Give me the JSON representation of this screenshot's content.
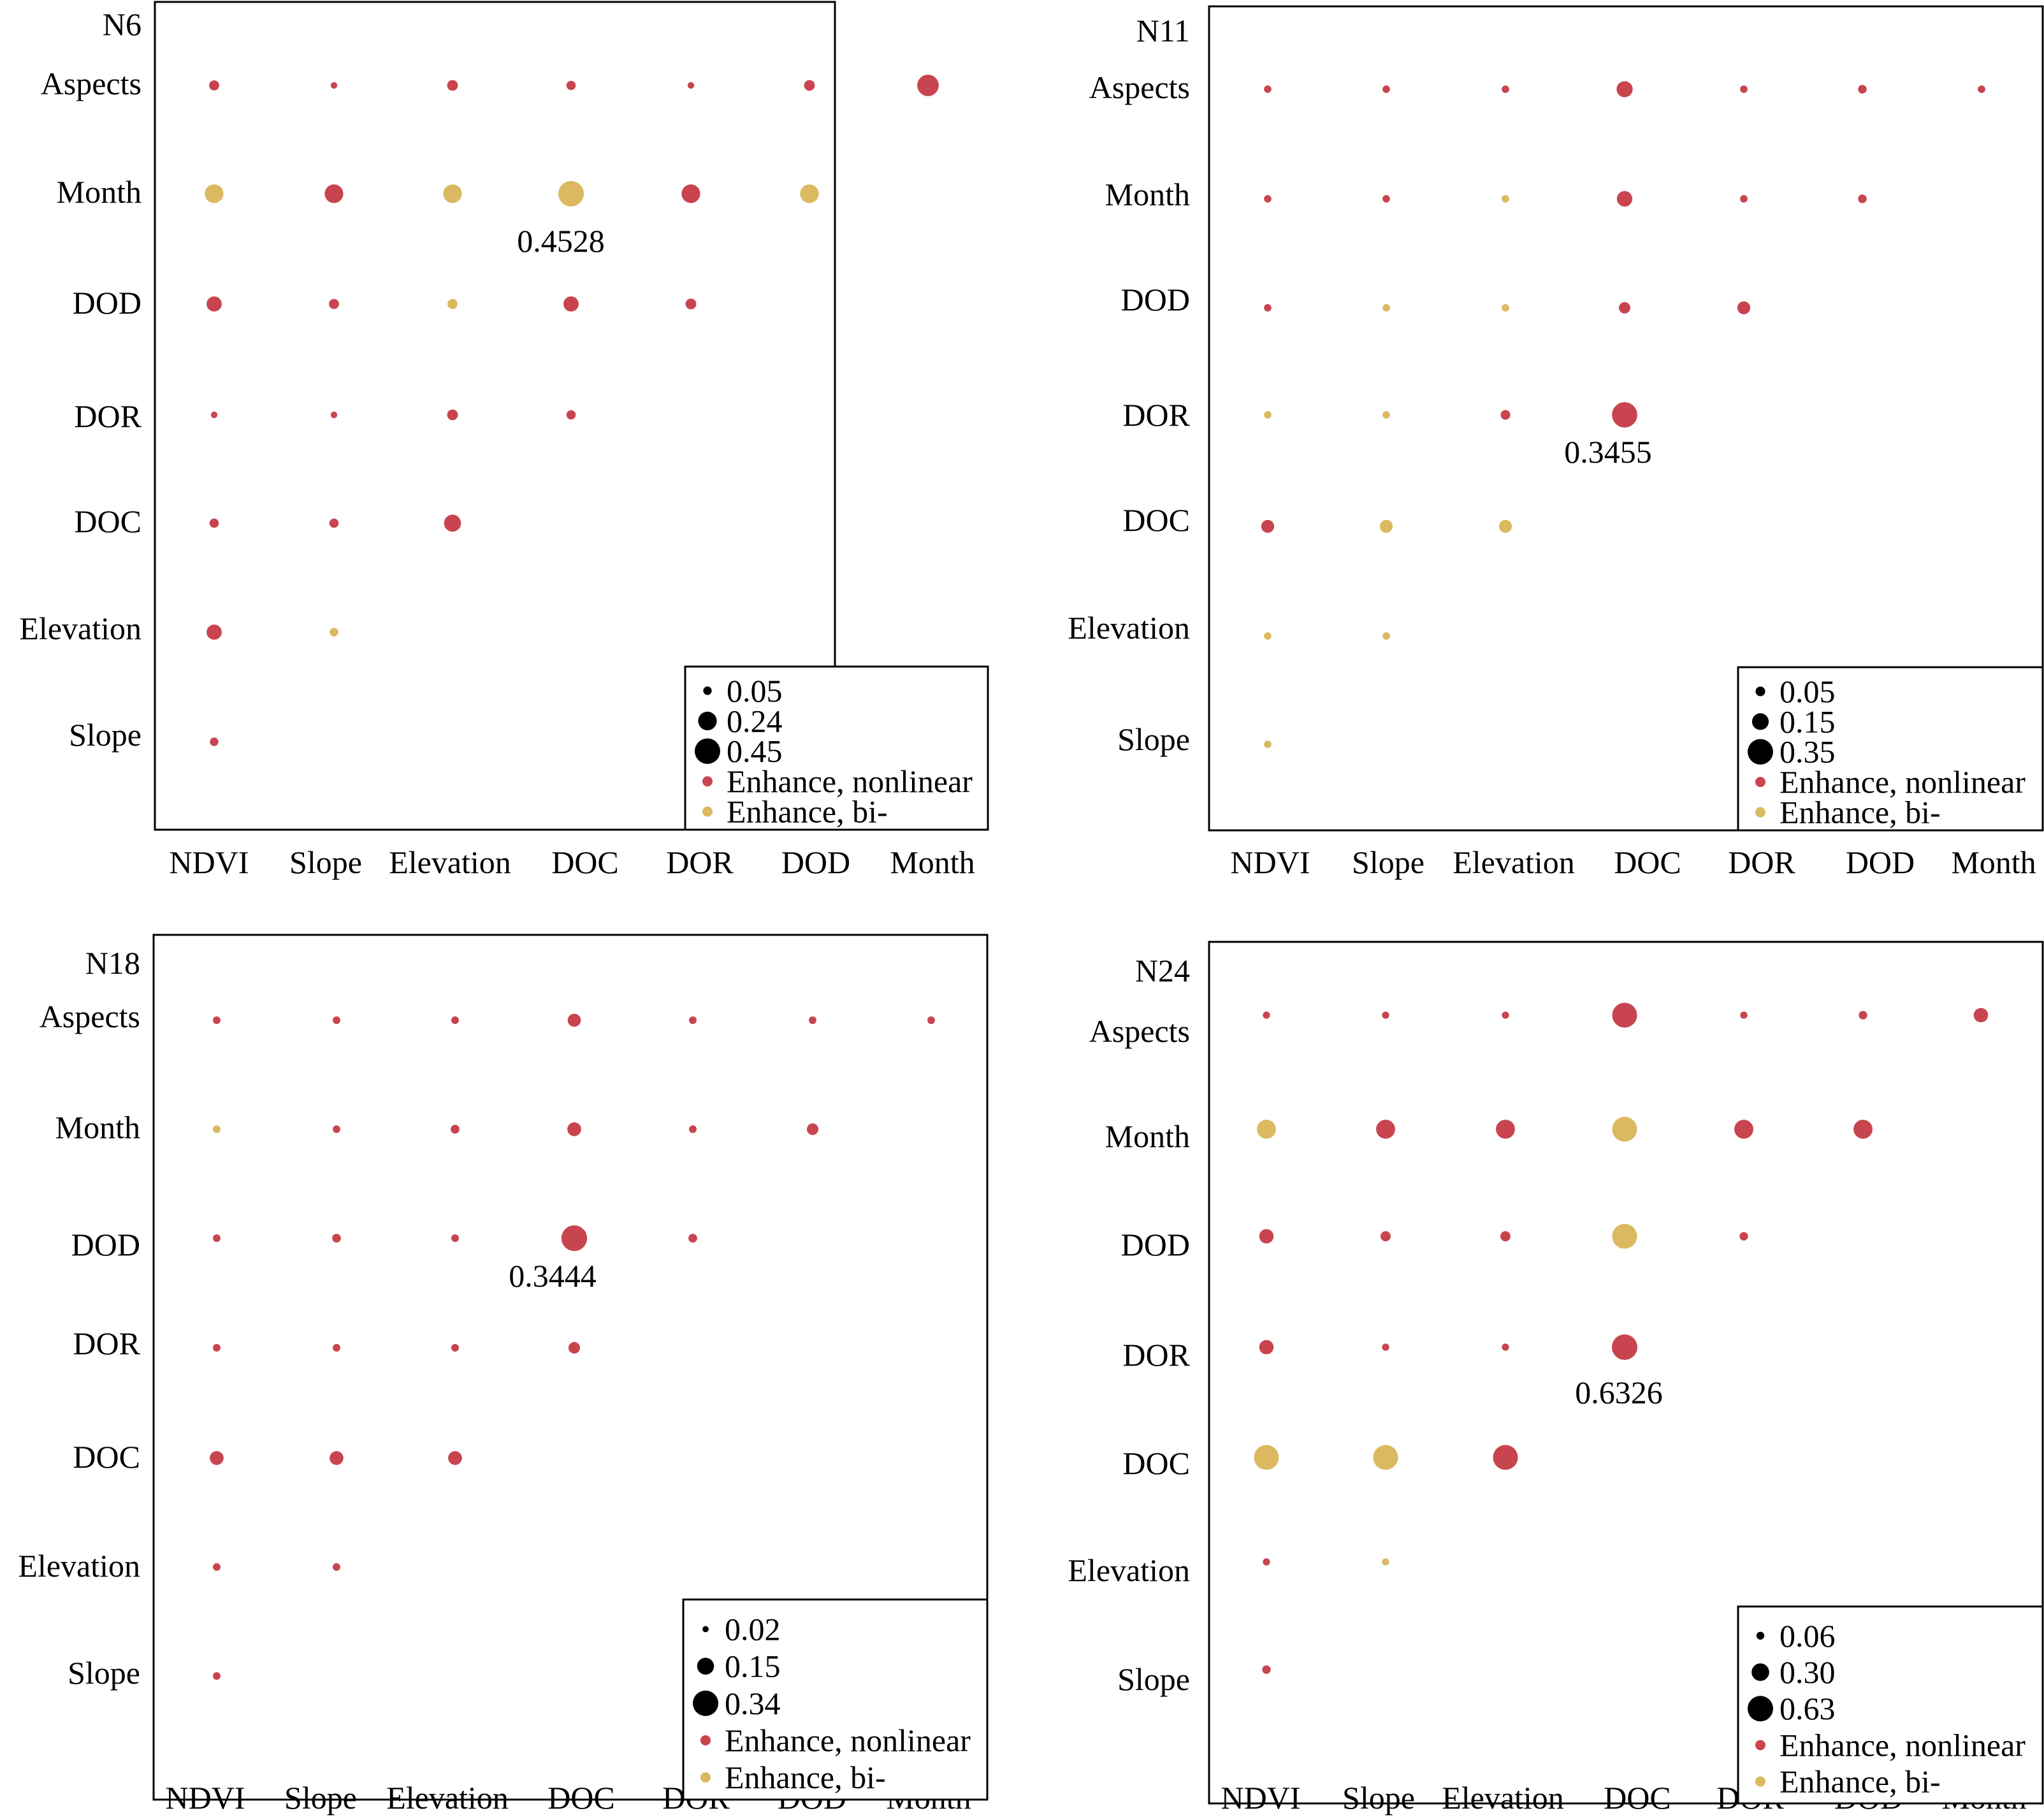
{
  "chart_data": [
    {
      "type": "scatter",
      "title": "N6",
      "x_categories": [
        "NDVI",
        "Slope",
        "Elevation",
        "DOC",
        "DOR",
        "DOD",
        "Month"
      ],
      "y_categories": [
        "Aspects",
        "Month",
        "DOD",
        "DOR",
        "DOC",
        "Elevation",
        "Slope"
      ],
      "max_label": "0.4528",
      "legend": {
        "sizes": [
          {
            "label": "0.05",
            "value": 0.05
          },
          {
            "label": "0.24",
            "value": 0.24
          },
          {
            "label": "0.45",
            "value": 0.45
          }
        ],
        "types": [
          "Enhance, nonlinear",
          "Enhance, bi-"
        ],
        "position": "bottom-right"
      },
      "points": [
        {
          "x": "NDVI",
          "y": "Aspects",
          "value": 0.07,
          "type": "nonlinear"
        },
        {
          "x": "Slope",
          "y": "Aspects",
          "value": 0.03,
          "type": "nonlinear"
        },
        {
          "x": "Elevation",
          "y": "Aspects",
          "value": 0.08,
          "type": "nonlinear"
        },
        {
          "x": "DOC",
          "y": "Aspects",
          "value": 0.06,
          "type": "nonlinear"
        },
        {
          "x": "DOR",
          "y": "Aspects",
          "value": 0.03,
          "type": "nonlinear"
        },
        {
          "x": "DOD",
          "y": "Aspects",
          "value": 0.08,
          "type": "nonlinear"
        },
        {
          "x": "Month",
          "y": "Aspects",
          "value": 0.32,
          "type": "nonlinear"
        },
        {
          "x": "NDVI",
          "y": "Month",
          "value": 0.24,
          "type": "bi"
        },
        {
          "x": "Slope",
          "y": "Month",
          "value": 0.24,
          "type": "nonlinear"
        },
        {
          "x": "Elevation",
          "y": "Month",
          "value": 0.24,
          "type": "bi"
        },
        {
          "x": "DOC",
          "y": "Month",
          "value": 0.4528,
          "type": "bi"
        },
        {
          "x": "DOR",
          "y": "Month",
          "value": 0.24,
          "type": "nonlinear"
        },
        {
          "x": "DOD",
          "y": "Month",
          "value": 0.24,
          "type": "bi"
        },
        {
          "x": "NDVI",
          "y": "DOD",
          "value": 0.16,
          "type": "nonlinear"
        },
        {
          "x": "Slope",
          "y": "DOD",
          "value": 0.07,
          "type": "nonlinear"
        },
        {
          "x": "Elevation",
          "y": "DOD",
          "value": 0.07,
          "type": "bi"
        },
        {
          "x": "DOC",
          "y": "DOD",
          "value": 0.16,
          "type": "nonlinear"
        },
        {
          "x": "DOR",
          "y": "DOD",
          "value": 0.08,
          "type": "nonlinear"
        },
        {
          "x": "NDVI",
          "y": "DOR",
          "value": 0.03,
          "type": "nonlinear"
        },
        {
          "x": "Slope",
          "y": "DOR",
          "value": 0.03,
          "type": "nonlinear"
        },
        {
          "x": "Elevation",
          "y": "DOR",
          "value": 0.08,
          "type": "nonlinear"
        },
        {
          "x": "DOC",
          "y": "DOR",
          "value": 0.06,
          "type": "nonlinear"
        },
        {
          "x": "NDVI",
          "y": "DOC",
          "value": 0.06,
          "type": "nonlinear"
        },
        {
          "x": "Slope",
          "y": "DOC",
          "value": 0.06,
          "type": "nonlinear"
        },
        {
          "x": "Elevation",
          "y": "DOC",
          "value": 0.2,
          "type": "nonlinear"
        },
        {
          "x": "NDVI",
          "y": "Elevation",
          "value": 0.16,
          "type": "nonlinear"
        },
        {
          "x": "Slope",
          "y": "Elevation",
          "value": 0.05,
          "type": "bi"
        },
        {
          "x": "NDVI",
          "y": "Slope",
          "value": 0.05,
          "type": "nonlinear"
        }
      ]
    },
    {
      "type": "scatter",
      "title": "N11",
      "x_categories": [
        "NDVI",
        "Slope",
        "Elevation",
        "DOC",
        "DOR",
        "DOD",
        "Month"
      ],
      "y_categories": [
        "Aspects",
        "Month",
        "DOD",
        "DOR",
        "DOC",
        "Elevation",
        "Slope"
      ],
      "max_label": "0.3455",
      "legend": {
        "sizes": [
          {
            "label": "0.05",
            "value": 0.05
          },
          {
            "label": "0.15",
            "value": 0.15
          },
          {
            "label": "0.35",
            "value": 0.35
          }
        ],
        "types": [
          "Enhance, nonlinear",
          "Enhance, bi-"
        ],
        "position": "bottom-right"
      },
      "points": [
        {
          "x": "NDVI",
          "y": "Aspects",
          "value": 0.03,
          "type": "nonlinear"
        },
        {
          "x": "Slope",
          "y": "Aspects",
          "value": 0.03,
          "type": "nonlinear"
        },
        {
          "x": "Elevation",
          "y": "Aspects",
          "value": 0.03,
          "type": "nonlinear"
        },
        {
          "x": "DOC",
          "y": "Aspects",
          "value": 0.14,
          "type": "nonlinear"
        },
        {
          "x": "DOR",
          "y": "Aspects",
          "value": 0.03,
          "type": "nonlinear"
        },
        {
          "x": "DOD",
          "y": "Aspects",
          "value": 0.04,
          "type": "nonlinear"
        },
        {
          "x": "Month",
          "y": "Aspects",
          "value": 0.03,
          "type": "nonlinear"
        },
        {
          "x": "NDVI",
          "y": "Month",
          "value": 0.03,
          "type": "nonlinear"
        },
        {
          "x": "Slope",
          "y": "Month",
          "value": 0.03,
          "type": "nonlinear"
        },
        {
          "x": "Elevation",
          "y": "Month",
          "value": 0.03,
          "type": "bi"
        },
        {
          "x": "DOC",
          "y": "Month",
          "value": 0.13,
          "type": "nonlinear"
        },
        {
          "x": "DOR",
          "y": "Month",
          "value": 0.03,
          "type": "nonlinear"
        },
        {
          "x": "DOD",
          "y": "Month",
          "value": 0.04,
          "type": "nonlinear"
        },
        {
          "x": "NDVI",
          "y": "DOD",
          "value": 0.03,
          "type": "nonlinear"
        },
        {
          "x": "Slope",
          "y": "DOD",
          "value": 0.03,
          "type": "bi"
        },
        {
          "x": "Elevation",
          "y": "DOD",
          "value": 0.03,
          "type": "bi"
        },
        {
          "x": "DOC",
          "y": "DOD",
          "value": 0.07,
          "type": "nonlinear"
        },
        {
          "x": "DOR",
          "y": "DOD",
          "value": 0.09,
          "type": "nonlinear"
        },
        {
          "x": "NDVI",
          "y": "DOR",
          "value": 0.03,
          "type": "bi"
        },
        {
          "x": "Slope",
          "y": "DOR",
          "value": 0.03,
          "type": "bi"
        },
        {
          "x": "Elevation",
          "y": "DOR",
          "value": 0.05,
          "type": "nonlinear"
        },
        {
          "x": "DOC",
          "y": "DOR",
          "value": 0.3455,
          "type": "nonlinear"
        },
        {
          "x": "NDVI",
          "y": "DOC",
          "value": 0.09,
          "type": "nonlinear"
        },
        {
          "x": "Slope",
          "y": "DOC",
          "value": 0.09,
          "type": "bi"
        },
        {
          "x": "Elevation",
          "y": "DOC",
          "value": 0.09,
          "type": "bi"
        },
        {
          "x": "NDVI",
          "y": "Elevation",
          "value": 0.03,
          "type": "bi"
        },
        {
          "x": "Slope",
          "y": "Elevation",
          "value": 0.03,
          "type": "bi"
        },
        {
          "x": "NDVI",
          "y": "Slope",
          "value": 0.03,
          "type": "bi"
        }
      ]
    },
    {
      "type": "scatter",
      "title": "N18",
      "x_categories": [
        "NDVI",
        "Slope",
        "Elevation",
        "DOC",
        "DOR",
        "DOD",
        "Month"
      ],
      "y_categories": [
        "Aspects",
        "Month",
        "DOD",
        "DOR",
        "DOC",
        "Elevation",
        "Slope"
      ],
      "max_label": "0.3444",
      "legend": {
        "sizes": [
          {
            "label": "0.02",
            "value": 0.02
          },
          {
            "label": "0.15",
            "value": 0.15
          },
          {
            "label": "0.34",
            "value": 0.34
          }
        ],
        "types": [
          "Enhance, nonlinear",
          "Enhance, bi-"
        ],
        "position": "bottom-right"
      },
      "points": [
        {
          "x": "NDVI",
          "y": "Aspects",
          "value": 0.03,
          "type": "nonlinear"
        },
        {
          "x": "Slope",
          "y": "Aspects",
          "value": 0.03,
          "type": "nonlinear"
        },
        {
          "x": "Elevation",
          "y": "Aspects",
          "value": 0.03,
          "type": "nonlinear"
        },
        {
          "x": "DOC",
          "y": "Aspects",
          "value": 0.09,
          "type": "nonlinear"
        },
        {
          "x": "DOR",
          "y": "Aspects",
          "value": 0.03,
          "type": "nonlinear"
        },
        {
          "x": "DOD",
          "y": "Aspects",
          "value": 0.03,
          "type": "nonlinear"
        },
        {
          "x": "Month",
          "y": "Aspects",
          "value": 0.03,
          "type": "nonlinear"
        },
        {
          "x": "NDVI",
          "y": "Month",
          "value": 0.03,
          "type": "bi"
        },
        {
          "x": "Slope",
          "y": "Month",
          "value": 0.03,
          "type": "nonlinear"
        },
        {
          "x": "Elevation",
          "y": "Month",
          "value": 0.04,
          "type": "nonlinear"
        },
        {
          "x": "DOC",
          "y": "Month",
          "value": 0.1,
          "type": "nonlinear"
        },
        {
          "x": "DOR",
          "y": "Month",
          "value": 0.03,
          "type": "nonlinear"
        },
        {
          "x": "DOD",
          "y": "Month",
          "value": 0.07,
          "type": "nonlinear"
        },
        {
          "x": "NDVI",
          "y": "DOD",
          "value": 0.03,
          "type": "nonlinear"
        },
        {
          "x": "Slope",
          "y": "DOD",
          "value": 0.04,
          "type": "nonlinear"
        },
        {
          "x": "Elevation",
          "y": "DOD",
          "value": 0.03,
          "type": "nonlinear"
        },
        {
          "x": "DOC",
          "y": "DOD",
          "value": 0.3444,
          "type": "nonlinear"
        },
        {
          "x": "DOR",
          "y": "DOD",
          "value": 0.04,
          "type": "nonlinear"
        },
        {
          "x": "NDVI",
          "y": "DOR",
          "value": 0.03,
          "type": "nonlinear"
        },
        {
          "x": "Slope",
          "y": "DOR",
          "value": 0.03,
          "type": "nonlinear"
        },
        {
          "x": "Elevation",
          "y": "DOR",
          "value": 0.03,
          "type": "nonlinear"
        },
        {
          "x": "DOC",
          "y": "DOR",
          "value": 0.07,
          "type": "nonlinear"
        },
        {
          "x": "NDVI",
          "y": "DOC",
          "value": 0.1,
          "type": "nonlinear"
        },
        {
          "x": "Slope",
          "y": "DOC",
          "value": 0.1,
          "type": "nonlinear"
        },
        {
          "x": "Elevation",
          "y": "DOC",
          "value": 0.1,
          "type": "nonlinear"
        },
        {
          "x": "NDVI",
          "y": "Elevation",
          "value": 0.03,
          "type": "nonlinear"
        },
        {
          "x": "Slope",
          "y": "Elevation",
          "value": 0.03,
          "type": "nonlinear"
        },
        {
          "x": "NDVI",
          "y": "Slope",
          "value": 0.03,
          "type": "nonlinear"
        }
      ]
    },
    {
      "type": "scatter",
      "title": "N24",
      "x_categories": [
        "NDVI",
        "Slope",
        "Elevation",
        "DOC",
        "DOR",
        "DOD",
        "Month"
      ],
      "y_categories": [
        "Aspects",
        "Month",
        "DOD",
        "DOR",
        "DOC",
        "Elevation",
        "Slope"
      ],
      "max_label": "0.6326",
      "legend": {
        "sizes": [
          {
            "label": "0.06",
            "value": 0.06
          },
          {
            "label": "0.30",
            "value": 0.3
          },
          {
            "label": "0.63",
            "value": 0.63
          }
        ],
        "types": [
          "Enhance, nonlinear",
          "Enhance, bi-"
        ],
        "position": "bottom-right"
      },
      "points": [
        {
          "x": "NDVI",
          "y": "Aspects",
          "value": 0.05,
          "type": "nonlinear"
        },
        {
          "x": "Slope",
          "y": "Aspects",
          "value": 0.05,
          "type": "nonlinear"
        },
        {
          "x": "Elevation",
          "y": "Aspects",
          "value": 0.05,
          "type": "nonlinear"
        },
        {
          "x": "DOC",
          "y": "Aspects",
          "value": 0.6,
          "type": "nonlinear"
        },
        {
          "x": "DOR",
          "y": "Aspects",
          "value": 0.05,
          "type": "nonlinear"
        },
        {
          "x": "DOD",
          "y": "Aspects",
          "value": 0.07,
          "type": "nonlinear"
        },
        {
          "x": "Month",
          "y": "Aspects",
          "value": 0.2,
          "type": "nonlinear"
        },
        {
          "x": "NDVI",
          "y": "Month",
          "value": 0.35,
          "type": "bi"
        },
        {
          "x": "Slope",
          "y": "Month",
          "value": 0.35,
          "type": "nonlinear"
        },
        {
          "x": "Elevation",
          "y": "Month",
          "value": 0.35,
          "type": "nonlinear"
        },
        {
          "x": "DOC",
          "y": "Month",
          "value": 0.6,
          "type": "bi"
        },
        {
          "x": "DOR",
          "y": "Month",
          "value": 0.35,
          "type": "nonlinear"
        },
        {
          "x": "DOD",
          "y": "Month",
          "value": 0.35,
          "type": "nonlinear"
        },
        {
          "x": "NDVI",
          "y": "DOD",
          "value": 0.2,
          "type": "nonlinear"
        },
        {
          "x": "Slope",
          "y": "DOD",
          "value": 0.1,
          "type": "nonlinear"
        },
        {
          "x": "Elevation",
          "y": "DOD",
          "value": 0.1,
          "type": "nonlinear"
        },
        {
          "x": "DOC",
          "y": "DOD",
          "value": 0.6,
          "type": "bi"
        },
        {
          "x": "DOR",
          "y": "DOD",
          "value": 0.07,
          "type": "nonlinear"
        },
        {
          "x": "NDVI",
          "y": "DOR",
          "value": 0.2,
          "type": "nonlinear"
        },
        {
          "x": "Slope",
          "y": "DOR",
          "value": 0.05,
          "type": "nonlinear"
        },
        {
          "x": "Elevation",
          "y": "DOR",
          "value": 0.05,
          "type": "nonlinear"
        },
        {
          "x": "DOC",
          "y": "DOR",
          "value": 0.6326,
          "type": "nonlinear"
        },
        {
          "x": "NDVI",
          "y": "DOC",
          "value": 0.6,
          "type": "bi"
        },
        {
          "x": "Slope",
          "y": "DOC",
          "value": 0.6,
          "type": "bi"
        },
        {
          "x": "Elevation",
          "y": "DOC",
          "value": 0.6,
          "type": "nonlinear"
        },
        {
          "x": "NDVI",
          "y": "Elevation",
          "value": 0.05,
          "type": "nonlinear"
        },
        {
          "x": "Slope",
          "y": "Elevation",
          "value": 0.05,
          "type": "bi"
        },
        {
          "x": "NDVI",
          "y": "Slope",
          "value": 0.07,
          "type": "nonlinear"
        }
      ]
    }
  ],
  "colors": {
    "nonlinear": "#c8444e",
    "bi": "#dbb960",
    "legend_size_marker": "#000000",
    "frame": "#000000"
  }
}
